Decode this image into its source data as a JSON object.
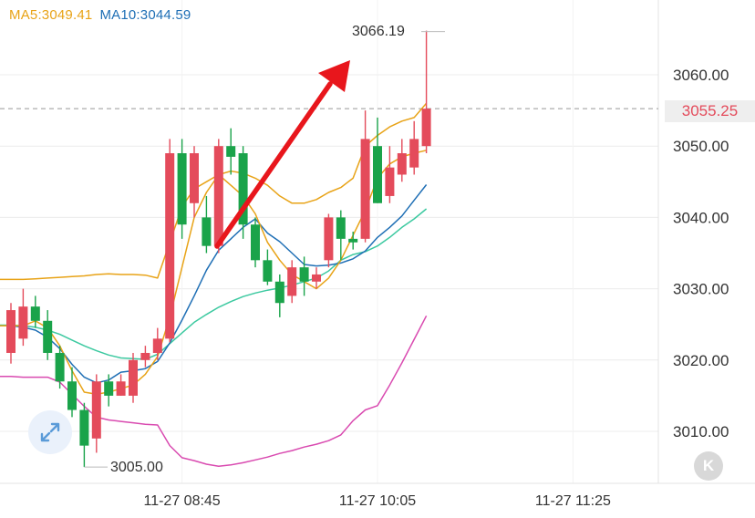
{
  "legend": {
    "ma5": "MA5:3049.41",
    "ma10": "MA10:3044.59",
    "ma5_color": "#e8a317",
    "ma10_color": "#1f6fb5"
  },
  "markers": {
    "high_label": "3066.19",
    "low_label": "3005.00",
    "current_price": "3055.25"
  },
  "buttons": {
    "expand_icon": "expand-arrows-icon",
    "k_label": "K"
  },
  "chart_data": {
    "type": "candlestick",
    "y_ticks": [
      "3060.00",
      "3050.00",
      "3040.00",
      "3030.00",
      "3020.00",
      "3010.00"
    ],
    "y_tick_values": [
      3060,
      3050,
      3040,
      3030,
      3020,
      3010
    ],
    "x_ticks": [
      "11-27 08:45",
      "11-27 10:05",
      "11-27 11:25"
    ],
    "x_tick_index": [
      14,
      30,
      46
    ],
    "ylim": [
      3002,
      3068
    ],
    "grid": true,
    "current_price": 3055.25,
    "colors": {
      "up": "#e44b5b",
      "down": "#1aa34a",
      "ma5": "#e8a317",
      "ma10": "#1f6fb5",
      "ma20": "#3cc9a0",
      "boll_lower": "#d94ab0",
      "arrow": "#e8161c"
    },
    "candles": [
      [
        3021.0,
        3027.0,
        3019.5,
        3028.0
      ],
      [
        3023.0,
        3027.5,
        3022.0,
        3030.0
      ],
      [
        3027.5,
        3025.5,
        3024.5,
        3029.0
      ],
      [
        3025.5,
        3021.0,
        3020.0,
        3027.0
      ],
      [
        3021.0,
        3017.0,
        3016.0,
        3022.0
      ],
      [
        3017.0,
        3013.0,
        3012.0,
        3019.0
      ],
      [
        3013.0,
        3008.0,
        3005.0,
        3014.0
      ],
      [
        3009.0,
        3017.0,
        3007.0,
        3018.0
      ],
      [
        3017.0,
        3015.0,
        3013.5,
        3018.0
      ],
      [
        3015.0,
        3017.0,
        3015.0,
        3018.0
      ],
      [
        3015.0,
        3020.0,
        3014.0,
        3021.0
      ],
      [
        3020.0,
        3021.0,
        3019.0,
        3022.0
      ],
      [
        3021.0,
        3023.0,
        3020.0,
        3024.5
      ],
      [
        3023.0,
        3049.0,
        3022.5,
        3051.0
      ],
      [
        3049.0,
        3039.0,
        3037.0,
        3051.0
      ],
      [
        3042.0,
        3049.0,
        3040.0,
        3050.0
      ],
      [
        3040.0,
        3036.0,
        3035.0,
        3043.0
      ],
      [
        3036.0,
        3050.0,
        3035.0,
        3051.0
      ],
      [
        3050.0,
        3048.5,
        3046.0,
        3052.5
      ],
      [
        3049.0,
        3039.0,
        3037.0,
        3050.0
      ],
      [
        3039.0,
        3034.0,
        3033.0,
        3040.0
      ],
      [
        3034.0,
        3031.0,
        3030.5,
        3035.5
      ],
      [
        3031.0,
        3028.0,
        3026.0,
        3032.0
      ],
      [
        3029.0,
        3033.0,
        3028.0,
        3034.0
      ],
      [
        3033.0,
        3031.0,
        3029.0,
        3034.5
      ],
      [
        3031.0,
        3032.0,
        3030.0,
        3033.0
      ],
      [
        3034.0,
        3040.0,
        3033.0,
        3040.5
      ],
      [
        3040.0,
        3037.0,
        3034.0,
        3041.0
      ],
      [
        3037.0,
        3036.5,
        3035.5,
        3038.0
      ],
      [
        3037.0,
        3051.0,
        3036.5,
        3055.0
      ],
      [
        3050.0,
        3042.0,
        3042.0,
        3054.0
      ],
      [
        3043.0,
        3047.0,
        3042.0,
        3050.0
      ],
      [
        3046.0,
        3049.0,
        3045.0,
        3051.0
      ],
      [
        3047.0,
        3051.0,
        3046.0,
        3053.5
      ],
      [
        3050.0,
        3055.25,
        3049.0,
        3066.19
      ]
    ],
    "ma5": [
      3024.8,
      3024.8,
      3025.5,
      3024.5,
      3022.0,
      3018.5,
      3015.5,
      3015.2,
      3015.5,
      3016.0,
      3016.5,
      3018.0,
      3020.5,
      3026.0,
      3033.0,
      3040.0,
      3043.5,
      3046.0,
      3044.5,
      3043.0,
      3040.5,
      3036.5,
      3034.0,
      3032.0,
      3031.0,
      3030.0,
      3031.5,
      3034.0,
      3037.5,
      3041.0,
      3045.5,
      3047.5,
      3048.5,
      3049.0,
      3049.41
    ],
    "ma10": [
      3024.8,
      3024.6,
      3024.2,
      3023.2,
      3021.6,
      3019.4,
      3017.6,
      3016.8,
      3017.2,
      3018.3,
      3018.5,
      3018.8,
      3019.8,
      3022.4,
      3025.6,
      3029.0,
      3032.6,
      3035.4,
      3037.0,
      3038.6,
      3039.8,
      3037.8,
      3036.6,
      3035.0,
      3033.4,
      3033.2,
      3033.3,
      3033.6,
      3034.2,
      3035.3,
      3037.2,
      3038.6,
      3040.2,
      3042.4,
      3044.59
    ],
    "ma20": [
      3024.9,
      3024.8,
      3024.6,
      3024.2,
      3023.6,
      3022.8,
      3022.0,
      3021.3,
      3020.7,
      3020.3,
      3020.2,
      3020.1,
      3020.8,
      3022.3,
      3023.8,
      3025.3,
      3026.4,
      3027.4,
      3028.2,
      3028.9,
      3029.4,
      3029.8,
      3030.1,
      3030.5,
      3031.0,
      3031.5,
      3032.5,
      3034.0,
      3034.8,
      3035.2,
      3036.0,
      3037.2,
      3038.6,
      3039.8,
      3041.2
    ],
    "boll_lower": [
      3017.7,
      3017.6,
      3017.6,
      3017.6,
      3016.9,
      3015.2,
      3013.5,
      3012.0,
      3011.6,
      3011.4,
      3011.2,
      3011.0,
      3010.9,
      3008.0,
      3006.3,
      3005.9,
      3005.4,
      3005.1,
      3005.3,
      3005.6,
      3006.0,
      3006.4,
      3006.9,
      3007.3,
      3007.8,
      3008.2,
      3008.7,
      3009.5,
      3011.5,
      3013.0,
      3013.6,
      3016.5,
      3019.6,
      3022.9,
      3026.2
    ],
    "ma_upper": [
      3031.3,
      3031.3,
      3031.4,
      3031.5,
      3031.6,
      3031.7,
      3031.8,
      3032.0,
      3032.1,
      3032.0,
      3032.0,
      3031.9,
      3031.5,
      3036.5,
      3041.5,
      3044.0,
      3045.0,
      3046.0,
      3046.5,
      3046.2,
      3045.5,
      3044.5,
      3043.0,
      3042.0,
      3042.0,
      3042.5,
      3043.5,
      3044.2,
      3045.5,
      3050.0,
      3051.5,
      3052.7,
      3053.5,
      3054.0,
      3056.0
    ]
  }
}
